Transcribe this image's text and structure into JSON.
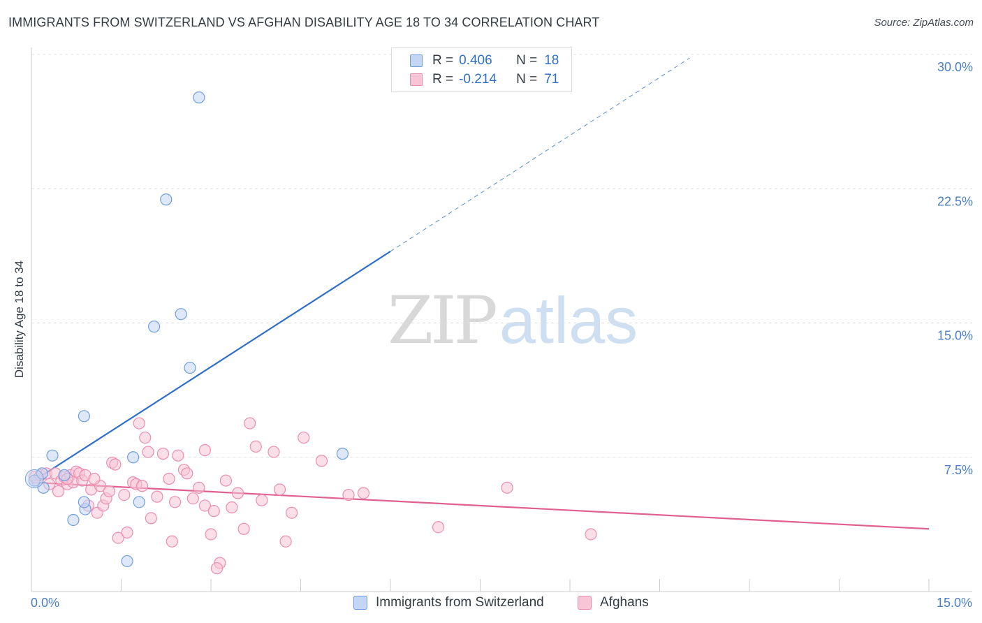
{
  "title": "IMMIGRANTS FROM SWITZERLAND VS AFGHAN DISABILITY AGE 18 TO 34 CORRELATION CHART",
  "source": "Source: ZipAtlas.com",
  "watermark": {
    "zip": "ZIP",
    "atlas": "atlas"
  },
  "colors": {
    "series1_fill": "#c3d6f3",
    "series1_stroke": "#6f9ee0",
    "series1_line": "#2f6fcc",
    "series2_fill": "#f8c5d6",
    "series2_stroke": "#ec8db0",
    "series2_line": "#e0608f",
    "grid": "#dde1e6",
    "tick_text": "#4a7fc8"
  },
  "legend": {
    "rows": [
      {
        "r_label": "R =",
        "r_value": "0.406",
        "n_label": "N =",
        "n_value": "18"
      },
      {
        "r_label": "R =",
        "r_value": "-0.214",
        "n_label": "N =",
        "n_value": "71"
      }
    ]
  },
  "bottom_legend": [
    "Immigrants from Switzerland",
    "Afghans"
  ],
  "chart_data": {
    "type": "scatter",
    "title": "IMMIGRANTS FROM SWITZERLAND VS AFGHAN DISABILITY AGE 18 TO 34 CORRELATION CHART",
    "xlabel": "",
    "ylabel": "Disability Age 18 to 34",
    "xlim": [
      0,
      15
    ],
    "ylim": [
      0,
      30
    ],
    "x_tick_labels": [
      "0.0%",
      "15.0%"
    ],
    "y_ticks": [
      7.5,
      15,
      22.5,
      30
    ],
    "y_tick_labels": [
      "7.5%",
      "15.0%",
      "22.5%",
      "30.0%"
    ],
    "grid": true,
    "legend_position": "top-center",
    "series": [
      {
        "name": "Immigrants from Switzerland",
        "r": 0.406,
        "n": 18,
        "trend": {
          "x0": 0,
          "y0": 6.1,
          "x1": 6.0,
          "y1": 19.0,
          "dashed_to_x": 11.0,
          "dashed_to_y": 29.8
        },
        "points": [
          [
            0.05,
            6.2
          ],
          [
            0.2,
            5.8
          ],
          [
            0.35,
            7.6
          ],
          [
            0.55,
            6.5
          ],
          [
            0.7,
            4.0
          ],
          [
            0.9,
            4.6
          ],
          [
            0.18,
            6.6
          ],
          [
            0.88,
            9.8
          ],
          [
            0.88,
            5.0
          ],
          [
            1.6,
            1.7
          ],
          [
            1.7,
            7.5
          ],
          [
            1.8,
            5.0
          ],
          [
            2.05,
            14.8
          ],
          [
            2.25,
            21.9
          ],
          [
            2.5,
            15.5
          ],
          [
            2.65,
            12.5
          ],
          [
            2.8,
            27.6
          ],
          [
            5.2,
            7.7
          ]
        ]
      },
      {
        "name": "Afghans",
        "r": -0.214,
        "n": 71,
        "trend": {
          "x0": 0,
          "y0": 6.1,
          "x1": 15.0,
          "y1": 3.5
        },
        "points": [
          [
            0.05,
            6.4
          ],
          [
            0.1,
            6.2
          ],
          [
            0.15,
            6.5
          ],
          [
            0.25,
            6.6
          ],
          [
            0.3,
            6.0
          ],
          [
            0.4,
            6.6
          ],
          [
            0.45,
            5.6
          ],
          [
            0.5,
            6.2
          ],
          [
            0.55,
            6.4
          ],
          [
            0.6,
            6.0
          ],
          [
            0.65,
            6.5
          ],
          [
            0.7,
            6.1
          ],
          [
            0.75,
            6.7
          ],
          [
            0.8,
            6.6
          ],
          [
            0.85,
            6.2
          ],
          [
            0.9,
            6.5
          ],
          [
            0.95,
            4.8
          ],
          [
            1.0,
            5.7
          ],
          [
            1.1,
            4.4
          ],
          [
            1.15,
            5.9
          ],
          [
            1.2,
            4.8
          ],
          [
            1.25,
            5.2
          ],
          [
            1.3,
            5.6
          ],
          [
            1.35,
            7.2
          ],
          [
            1.4,
            7.1
          ],
          [
            1.45,
            3.0
          ],
          [
            1.55,
            5.4
          ],
          [
            1.6,
            3.3
          ],
          [
            1.7,
            6.1
          ],
          [
            1.75,
            6.0
          ],
          [
            1.8,
            9.4
          ],
          [
            1.85,
            5.9
          ],
          [
            1.9,
            8.6
          ],
          [
            1.95,
            7.8
          ],
          [
            2.0,
            4.1
          ],
          [
            2.1,
            5.3
          ],
          [
            2.2,
            7.7
          ],
          [
            2.3,
            6.3
          ],
          [
            2.35,
            2.8
          ],
          [
            2.4,
            5.0
          ],
          [
            2.45,
            7.6
          ],
          [
            2.55,
            6.8
          ],
          [
            2.6,
            6.6
          ],
          [
            2.7,
            5.2
          ],
          [
            2.8,
            5.8
          ],
          [
            2.9,
            4.8
          ],
          [
            3.0,
            3.2
          ],
          [
            3.05,
            4.5
          ],
          [
            3.15,
            1.6
          ],
          [
            3.25,
            6.2
          ],
          [
            3.35,
            4.7
          ],
          [
            3.45,
            5.5
          ],
          [
            3.55,
            3.5
          ],
          [
            3.65,
            9.4
          ],
          [
            3.75,
            8.1
          ],
          [
            3.85,
            5.1
          ],
          [
            4.05,
            7.8
          ],
          [
            4.15,
            5.7
          ],
          [
            4.25,
            2.8
          ],
          [
            4.35,
            4.4
          ],
          [
            4.55,
            8.6
          ],
          [
            4.85,
            7.3
          ],
          [
            5.3,
            5.4
          ],
          [
            5.55,
            5.5
          ],
          [
            6.8,
            3.6
          ],
          [
            7.95,
            5.8
          ],
          [
            9.35,
            3.2
          ],
          [
            3.1,
            1.3
          ],
          [
            2.9,
            7.9
          ],
          [
            0.6,
            6.3
          ],
          [
            1.05,
            6.3
          ]
        ]
      }
    ]
  }
}
